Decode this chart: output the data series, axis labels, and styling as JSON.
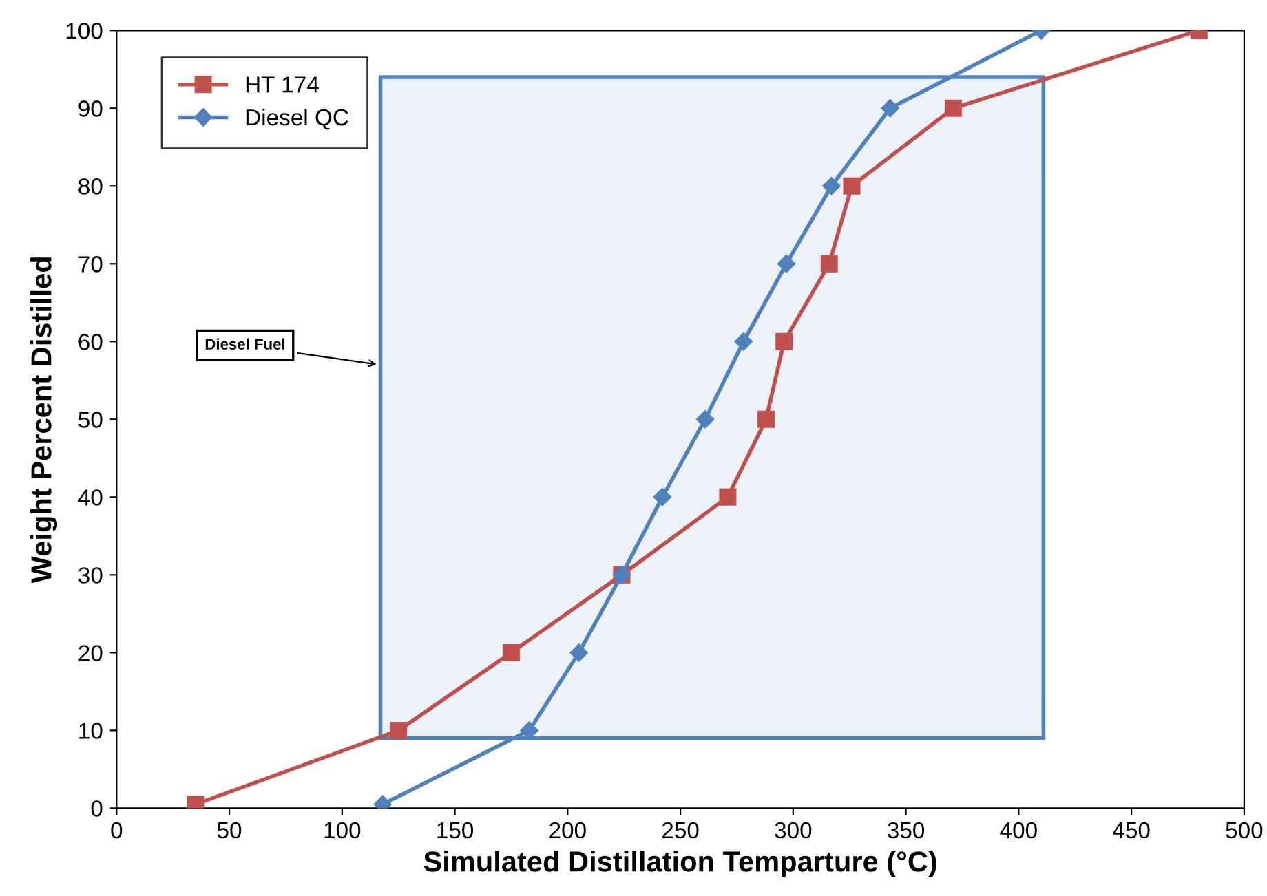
{
  "chart_data": {
    "type": "line",
    "xlabel": "Simulated Distillation Temparture (°C)",
    "ylabel": "Weight Percent Distilled",
    "series": [
      {
        "type": "area",
        "color": "#4f81bd",
        "x": [
          117,
          411,
          411,
          117,
          117
        ],
        "values": [
          9,
          9,
          94,
          94,
          9
        ]
      },
      {
        "name": "HT 174",
        "color": "#c0504d",
        "marker": "square",
        "x": [
          35,
          125,
          175,
          224,
          271,
          288,
          296,
          316,
          326,
          371,
          480
        ],
        "values": [
          0.5,
          10,
          20,
          30,
          40,
          50,
          60,
          70,
          80,
          90,
          100
        ]
      },
      {
        "name": "Diesel QC",
        "color": "#4f81bd",
        "marker": "diamond",
        "x": [
          118,
          183,
          205,
          224,
          242,
          261,
          278,
          297,
          317,
          343,
          410
        ],
        "values": [
          0.5,
          10,
          20,
          30,
          40,
          50,
          60,
          70,
          80,
          90,
          100
        ]
      }
    ],
    "annotations": [
      {
        "text": "Diesel Fuel",
        "x": 117,
        "y": 57
      }
    ],
    "xlim": [
      0,
      500
    ],
    "ylim": [
      0,
      100
    ],
    "xticks": [
      0,
      50,
      100,
      150,
      200,
      250,
      300,
      350,
      400,
      450,
      500
    ],
    "yticks": [
      0,
      10,
      20,
      30,
      40,
      50,
      60,
      70,
      80,
      90,
      100
    ],
    "grid": false,
    "legend": "top left",
    "line_style": "solid"
  }
}
